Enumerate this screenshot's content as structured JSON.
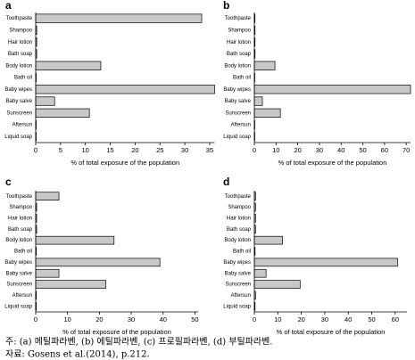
{
  "chart_data": [
    {
      "type": "bar",
      "title": "a",
      "x_label": "% of total exposure of the population",
      "categories": [
        "Toothpaste",
        "Shampoo",
        "Hair lotion",
        "Bath soap",
        "Body lotion",
        "Bath oil",
        "Baby wipes",
        "Baby salve",
        "Sunscreen",
        "Aftersun",
        "Liquid soap"
      ],
      "values": [
        33.4,
        0.2,
        0.2,
        0.2,
        13.1,
        0.1,
        36,
        3.8,
        10.8,
        0.1,
        0.1
      ],
      "color": "#c8c8c8",
      "xlim": [
        0,
        36
      ],
      "xticks": [
        0,
        5,
        10,
        15,
        20,
        25,
        30,
        35
      ]
    },
    {
      "type": "bar",
      "title": "b",
      "x_label": "% of total exposure of the population",
      "categories": [
        "Toothpaste",
        "Shampoo",
        "Hair lotion",
        "Bath soap",
        "Body lotion",
        "Bath oil",
        "Baby wipes",
        "Baby salve",
        "Sunscreen",
        "Aftersun",
        "Liquid soap"
      ],
      "values": [
        0.3,
        0.3,
        0.3,
        0.3,
        9.5,
        0.2,
        72,
        3.7,
        12,
        0.2,
        0.2
      ],
      "color": "#c8c8c8",
      "xlim": [
        0,
        72
      ],
      "xticks": [
        0,
        10,
        20,
        30,
        40,
        50,
        60,
        70
      ]
    },
    {
      "type": "bar",
      "title": "c",
      "x_label": "% of total exposure of the population",
      "categories": [
        "Toothpaste",
        "Shampoo",
        "Hair lotion",
        "Bath soap",
        "Body lotion",
        "Bath oil",
        "Baby wipes",
        "Baby salve",
        "Sunscreen",
        "Aftersun",
        "Liquid soap"
      ],
      "values": [
        7.3,
        0.3,
        0.3,
        0.3,
        24.6,
        0.2,
        39,
        7.3,
        22,
        0.2,
        0.2
      ],
      "color": "#c8c8c8",
      "xlim": [
        0,
        51
      ],
      "xticks": [
        0,
        10,
        20,
        30,
        40,
        50
      ]
    },
    {
      "type": "bar",
      "title": "d",
      "x_label": "% of total exposure of the population",
      "categories": [
        "Toothpaste",
        "Shampoo",
        "Hair lotion",
        "Bath soap",
        "Body lotion",
        "Bath oil",
        "Baby wipes",
        "Baby salve",
        "Sunscreen",
        "Aftersun",
        "Liquid soap"
      ],
      "values": [
        0.5,
        0.5,
        0.5,
        0.5,
        12,
        0.3,
        61,
        5,
        19.5,
        0.5,
        0.3
      ],
      "color": "#c8c8c8",
      "xlim": [
        0,
        65
      ],
      "xticks": [
        0,
        10,
        20,
        30,
        40,
        50,
        60
      ]
    }
  ],
  "notes": [
    "주: (a) 메틸파라벤, (b) 에틸파라벤, (c) 프로필파라벤, (d) 부틸파라벤.",
    "자료: Gosens et al.(2014), p.212."
  ]
}
